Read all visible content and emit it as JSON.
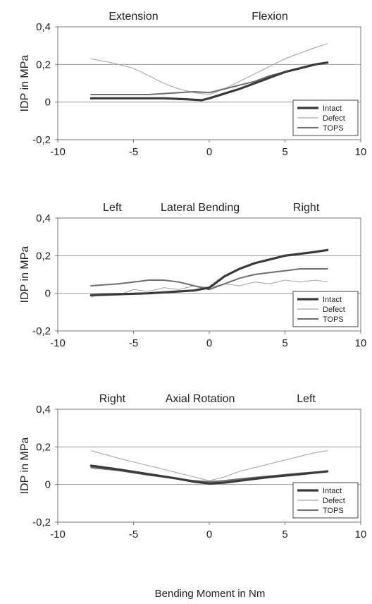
{
  "xlabel": "Bending Moment in Nm",
  "chart_data": [
    {
      "type": "line",
      "panel_labels": [
        "Extension",
        "Flexion"
      ],
      "ylabel": "IDP in MPa",
      "xlim": [
        -10,
        10
      ],
      "ylim": [
        -0.2,
        0.4
      ],
      "x_ticks": [
        "-10",
        "-5",
        "0",
        "5",
        "10"
      ],
      "y_ticks": [
        "-0,2",
        "0",
        "0,2",
        "0,4"
      ],
      "grid": "horizontal",
      "legend": "bottom-right",
      "series": [
        {
          "name": "Intact",
          "color": "#3a3a3a",
          "width": 3.2,
          "x": [
            -7.8,
            -5,
            -3,
            -1.5,
            -0.5,
            0,
            1,
            2,
            3,
            4,
            5,
            6,
            7,
            7.8
          ],
          "y": [
            0.02,
            0.02,
            0.02,
            0.015,
            0.01,
            0.02,
            0.045,
            0.07,
            0.1,
            0.13,
            0.16,
            0.18,
            0.2,
            0.21
          ]
        },
        {
          "name": "Defect",
          "color": "#a8a8a8",
          "width": 1.1,
          "x": [
            -7.8,
            -6.5,
            -5,
            -4,
            -3,
            -2,
            -1,
            0,
            1,
            2,
            3,
            4,
            5,
            6,
            7,
            7.8
          ],
          "y": [
            0.23,
            0.21,
            0.18,
            0.14,
            0.1,
            0.07,
            0.05,
            0.04,
            0.07,
            0.11,
            0.15,
            0.19,
            0.23,
            0.26,
            0.29,
            0.31
          ]
        },
        {
          "name": "TOPS",
          "color": "#6e6e6e",
          "width": 2,
          "x": [
            -7.8,
            -6,
            -4,
            -2,
            -1,
            0,
            1,
            2,
            3,
            4,
            5,
            6,
            7,
            7.8
          ],
          "y": [
            0.04,
            0.04,
            0.04,
            0.05,
            0.055,
            0.05,
            0.07,
            0.09,
            0.11,
            0.14,
            0.16,
            0.18,
            0.2,
            0.21
          ]
        }
      ]
    },
    {
      "type": "line",
      "panel_labels": [
        "Left",
        "Lateral Bending",
        "Right"
      ],
      "ylabel": "IDP in MPa",
      "xlim": [
        -10,
        10
      ],
      "ylim": [
        -0.2,
        0.4
      ],
      "x_ticks": [
        "-10",
        "-5",
        "0",
        "5",
        "10"
      ],
      "y_ticks": [
        "-0,2",
        "0",
        "0,2",
        "0,4"
      ],
      "grid": "horizontal",
      "legend": "bottom-right",
      "series": [
        {
          "name": "Intact",
          "color": "#3a3a3a",
          "width": 3.2,
          "x": [
            -7.8,
            -6,
            -4,
            -2,
            -1,
            0,
            0.5,
            1,
            2,
            3,
            4,
            5,
            6,
            7,
            7.8
          ],
          "y": [
            -0.01,
            -0.005,
            0,
            0.01,
            0.015,
            0.03,
            0.06,
            0.09,
            0.13,
            0.16,
            0.18,
            0.2,
            0.21,
            0.22,
            0.23
          ]
        },
        {
          "name": "Defect",
          "color": "#a8a8a8",
          "width": 1.1,
          "x": [
            -7.8,
            -7,
            -6,
            -5,
            -4,
            -3,
            -2,
            -1,
            0,
            1,
            2,
            3,
            4,
            5,
            6,
            7,
            7.8
          ],
          "y": [
            -0.02,
            0.0,
            -0.01,
            0.02,
            0.01,
            0.03,
            0.02,
            0.04,
            0.03,
            0.05,
            0.04,
            0.06,
            0.05,
            0.07,
            0.06,
            0.07,
            0.06
          ]
        },
        {
          "name": "TOPS",
          "color": "#6e6e6e",
          "width": 2,
          "x": [
            -7.8,
            -6,
            -5,
            -4,
            -3,
            -2,
            -1,
            0,
            1,
            2,
            3,
            4,
            5,
            6,
            7,
            7.8
          ],
          "y": [
            0.04,
            0.05,
            0.06,
            0.07,
            0.07,
            0.06,
            0.04,
            0.02,
            0.05,
            0.08,
            0.1,
            0.11,
            0.12,
            0.13,
            0.13,
            0.13
          ]
        }
      ]
    },
    {
      "type": "line",
      "panel_labels": [
        "Right",
        "Axial Rotation",
        "Left"
      ],
      "ylabel": "IDP in MPa",
      "xlim": [
        -10,
        10
      ],
      "ylim": [
        -0.2,
        0.4
      ],
      "x_ticks": [
        "-10",
        "-5",
        "0",
        "5",
        "10"
      ],
      "y_ticks": [
        "-0,2",
        "0",
        "0,2",
        "0,4"
      ],
      "grid": "horizontal",
      "legend": "bottom-right",
      "series": [
        {
          "name": "Intact",
          "color": "#3a3a3a",
          "width": 3.2,
          "x": [
            -7.8,
            -6,
            -4,
            -2,
            -1,
            0,
            1,
            2,
            4,
            6,
            7.8
          ],
          "y": [
            0.1,
            0.08,
            0.055,
            0.03,
            0.015,
            0.005,
            0.01,
            0.02,
            0.04,
            0.055,
            0.07
          ]
        },
        {
          "name": "Defect",
          "color": "#a8a8a8",
          "width": 1.1,
          "x": [
            -7.8,
            -6,
            -4,
            -2,
            -1,
            0,
            1,
            2,
            3,
            4,
            5,
            6,
            7,
            7.8
          ],
          "y": [
            0.18,
            0.14,
            0.1,
            0.06,
            0.04,
            0.02,
            0.04,
            0.07,
            0.09,
            0.11,
            0.13,
            0.15,
            0.17,
            0.18
          ]
        },
        {
          "name": "TOPS",
          "color": "#6e6e6e",
          "width": 2,
          "x": [
            -7.8,
            -6,
            -4,
            -2,
            -1,
            0,
            1,
            2,
            4,
            6,
            7.8
          ],
          "y": [
            0.09,
            0.075,
            0.05,
            0.03,
            0.02,
            0.015,
            0.02,
            0.03,
            0.045,
            0.06,
            0.07
          ]
        }
      ]
    }
  ]
}
